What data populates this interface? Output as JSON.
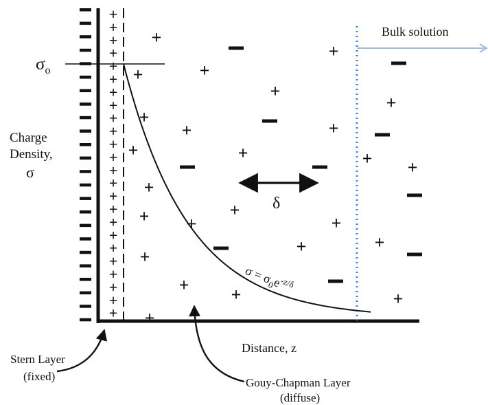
{
  "labels": {
    "sigma_o": "σ",
    "sigma_o_sub": "o",
    "bulk_solution": "Bulk solution",
    "charge_density_line1": "Charge",
    "charge_density_line2": "Density,",
    "charge_density_line3": "σ",
    "delta": "δ",
    "equation_lhs": "σ = σ",
    "equation_sub": "0",
    "equation_e": "e",
    "equation_exp": "-z/δ",
    "distance": "Distance, z",
    "stern_line1": "Stern Layer",
    "stern_line2": "(fixed)",
    "gouy_line1": "Gouy-Chapman Layer",
    "gouy_line2": "(diffuse)"
  },
  "symbols": {
    "surface_negative": "−",
    "stern_positive": "+",
    "positive_ion": "+",
    "negative_ion": "−"
  },
  "colors": {
    "ink": "#111111",
    "bulk_boundary": "#3b7dd8",
    "bulk_arrow": "#7ea4d6"
  }
}
